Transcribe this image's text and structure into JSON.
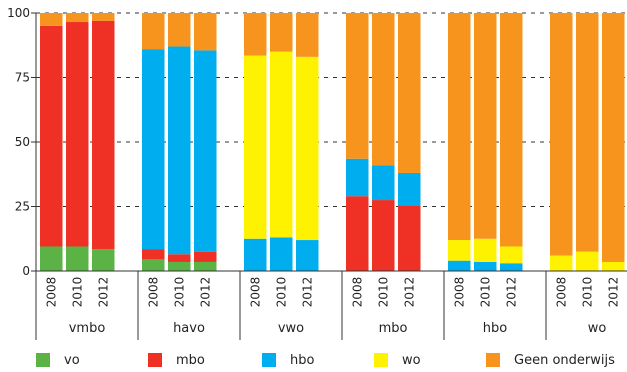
{
  "chart_data": {
    "type": "bar",
    "stacked": true,
    "title": "",
    "xlabel": "",
    "ylabel": "",
    "ylim": [
      0,
      100
    ],
    "yticks": [
      0,
      25,
      50,
      75,
      100
    ],
    "grid": "horizontal dashed",
    "legend_position": "bottom",
    "groups": [
      {
        "label": "vmbo",
        "years": [
          "2008",
          "2010",
          "2012"
        ]
      },
      {
        "label": "havo",
        "years": [
          "2008",
          "2010",
          "2012"
        ]
      },
      {
        "label": "vwo",
        "years": [
          "2008",
          "2010",
          "2012"
        ]
      },
      {
        "label": "mbo",
        "years": [
          "2008",
          "2010",
          "2012"
        ]
      },
      {
        "label": "hbo",
        "years": [
          "2008",
          "2010",
          "2012"
        ]
      },
      {
        "label": "wo",
        "years": [
          "2008",
          "2010",
          "2012"
        ]
      }
    ],
    "series": [
      {
        "name": "vo",
        "color": "#5ab344",
        "values": [
          [
            9.5,
            9.5,
            8.5
          ],
          [
            4.5,
            3.5,
            3.5
          ],
          [
            0,
            0,
            0
          ],
          [
            0,
            0,
            0
          ],
          [
            0,
            0,
            0
          ],
          [
            0,
            0,
            0
          ]
        ]
      },
      {
        "name": "mbo",
        "color": "#ee3124",
        "values": [
          [
            85.5,
            87,
            88.5
          ],
          [
            4,
            3,
            4
          ],
          [
            0,
            0,
            0
          ],
          [
            29,
            27.5,
            25.5
          ],
          [
            0,
            0,
            0
          ],
          [
            0,
            0,
            0
          ]
        ]
      },
      {
        "name": "hbo",
        "color": "#00aeef",
        "values": [
          [
            0,
            0,
            0
          ],
          [
            77.5,
            80.5,
            78
          ],
          [
            12.5,
            13,
            12
          ],
          [
            14.5,
            13.5,
            12.5
          ],
          [
            4,
            3.5,
            3
          ],
          [
            0,
            0,
            0
          ]
        ]
      },
      {
        "name": "wo",
        "color": "#fff200",
        "values": [
          [
            0,
            0,
            0
          ],
          [
            0,
            0,
            0
          ],
          [
            71,
            72,
            71
          ],
          [
            0,
            0,
            0
          ],
          [
            8,
            9,
            6.5
          ],
          [
            6,
            7.5,
            3.5
          ]
        ]
      },
      {
        "name": "Geen onderwijs",
        "color": "#f7941d",
        "values": [
          [
            5,
            3.5,
            3
          ],
          [
            14,
            13,
            14.5
          ],
          [
            16.5,
            15,
            17
          ],
          [
            56.5,
            59,
            62
          ],
          [
            88,
            87.5,
            90.5
          ],
          [
            94,
            92.5,
            96.5
          ]
        ]
      }
    ]
  },
  "legend": {
    "items": [
      {
        "label": "vo",
        "color": "#5ab344"
      },
      {
        "label": "mbo",
        "color": "#ee3124"
      },
      {
        "label": "hbo",
        "color": "#00aeef"
      },
      {
        "label": "wo",
        "color": "#fff200"
      },
      {
        "label": "Geen onderwijs",
        "color": "#f7941d"
      }
    ]
  }
}
